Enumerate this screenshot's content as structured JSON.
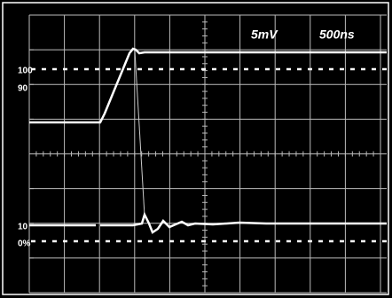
{
  "scope": {
    "volts_per_div": "5mV",
    "time_per_div": "500ns",
    "levels": {
      "top": "100",
      "upper": "90",
      "lower": "10",
      "bottom": "0%"
    }
  }
}
